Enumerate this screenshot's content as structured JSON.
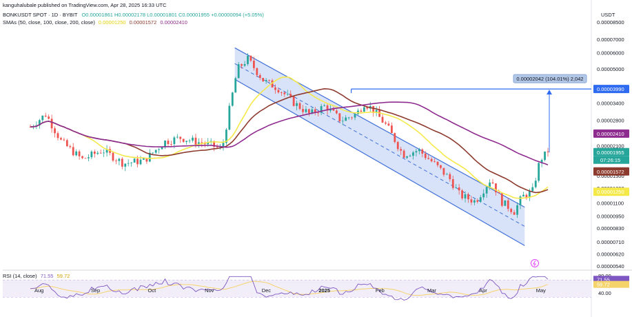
{
  "header": {
    "publisher": "kanguhalubale published on TradingView.com, Apr 28, 2025 16:33 UTC",
    "symbol": "BONKUSDT SPOT · 1D · BYBIT",
    "ohlc": "O0.00001861 H0.00002178 L0.00001801 C0.00001955 +0.00000094 (+5.05%)",
    "sma_title": "SMAs (50, close, 100, close, 200, close)",
    "sma50_value": "0.00001250",
    "sma100_value": "0.00001572",
    "sma200_value": "0.00002410",
    "currency": "USDT"
  },
  "rsi": {
    "title": "RSI (14, close)",
    "value": "71.55",
    "ma_value": "59.72",
    "ticks": [
      "80.00",
      "40.00"
    ]
  },
  "annotation": {
    "measure_label": "0.00002042 (104.01%) 2,042",
    "target_price": "0.00003990",
    "current_time": "07:26:15"
  },
  "colors": {
    "up": "#26a69a",
    "down": "#ef5350",
    "sma50": "#f5e94a",
    "sma100": "#8d3a2e",
    "sma200": "#8e2b8e",
    "channel_fill": "#c8d7f7",
    "channel_line": "#3f6fd8",
    "target_line": "#2f6bf0",
    "rsi_line": "#7e57c2",
    "rsi_ma": "#f5d36b",
    "rsi_band": "#ede7f6"
  },
  "chart_data": {
    "type": "candlestick",
    "title": "BONKUSDT SPOT · 1D · BYBIT",
    "ylabel": "USDT",
    "y_scale": "log",
    "x_ticks": [
      "Aug",
      "Sep",
      "Oct",
      "Nov",
      "Dec",
      "2025",
      "Feb",
      "Mar",
      "Apr",
      "May"
    ],
    "y_ticks": [
      "0.00008500",
      "0.00007000",
      "0.00006000",
      "0.00005000",
      "0.00003400",
      "0.00002800",
      "0.00002100",
      "0.00001500",
      "0.00001300",
      "0.00001100",
      "0.00000950",
      "0.00000830",
      "0.00000710",
      "0.00000620",
      "0.00000540"
    ],
    "price_tags": [
      {
        "label": "0.00003990",
        "value": 3.99e-05,
        "color": "#2f6bf0"
      },
      {
        "label": "0.00002410",
        "value": 2.41e-05,
        "color": "#8e2b8e"
      },
      {
        "label": "0.00001955",
        "value": 1.955e-05,
        "color": "#26a69a"
      },
      {
        "label": "0.00001572",
        "value": 1.572e-05,
        "color": "#8d3a2e"
      },
      {
        "label": "0.00001250",
        "value": 1.25e-05,
        "color": "#f5e94a"
      }
    ],
    "last_close": 1.955e-05,
    "measured_move": {
      "from": 1.948e-05,
      "to": 3.99e-05,
      "change": 2.042e-05,
      "percent": 104.01
    },
    "channel": {
      "upper_start": 6.35e-05,
      "upper_end": 1.05e-05,
      "lower_start": 4.45e-05,
      "lower_end": 6.8e-06
    },
    "series": [
      {
        "name": "SMA 50",
        "last": 1.25e-05
      },
      {
        "name": "SMA 100",
        "last": 1.572e-05
      },
      {
        "name": "SMA 200",
        "last": 2.41e-05
      },
      {
        "name": "RSI 14",
        "last": 71.55
      },
      {
        "name": "RSI MA",
        "last": 59.72
      }
    ]
  }
}
